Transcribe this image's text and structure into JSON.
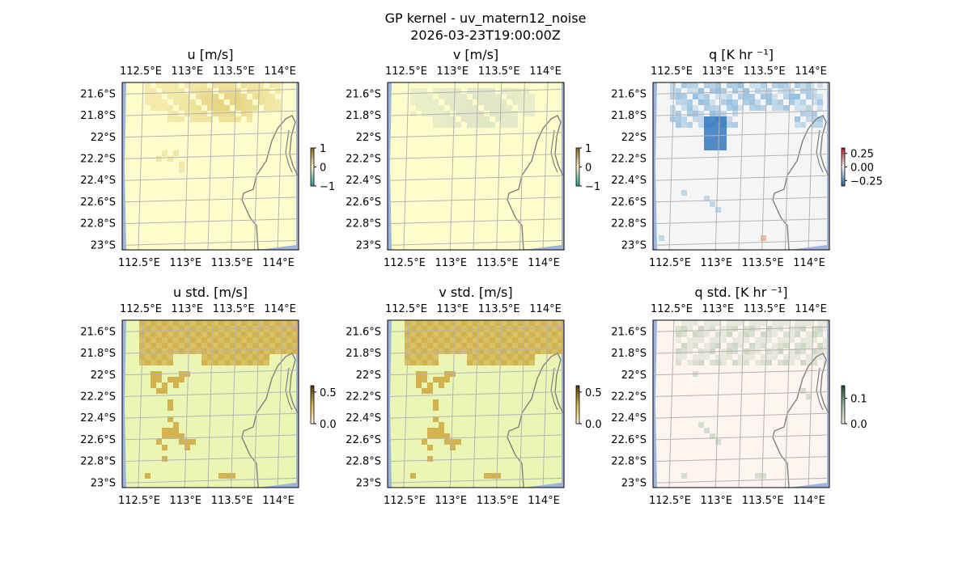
{
  "figure": {
    "title": "GP kernel - uv_matern12_noise",
    "subtitle": "2026-03-23T19:00:00Z"
  },
  "colors": {
    "ocean": "#9bb5dc",
    "coast": "#808080",
    "grid": "#b4b4b4",
    "u_v_base": "#fefdcb",
    "q_base": "#f5f5f5",
    "std_base": "#eaf7b4",
    "q_std_base": "#fef4f0"
  },
  "axes": {
    "x_ticks": [
      "112.5°E",
      "113°E",
      "113.5°E",
      "114°E"
    ],
    "y_ticks": [
      "21.6°S",
      "21.8°S",
      "22°S",
      "22.2°S",
      "22.4°S",
      "22.6°S",
      "22.8°S",
      "23°S"
    ],
    "x_values": [
      112.5,
      113.0,
      113.5,
      114.0
    ],
    "y_values": [
      -21.6,
      -21.8,
      -22.0,
      -22.2,
      -22.4,
      -22.6,
      -22.8,
      -23.0
    ],
    "xlim": [
      112.3,
      114.2
    ],
    "ylim": [
      -23.05,
      -21.5
    ],
    "grid": true
  },
  "chart_data": [
    {
      "type": "heatmap",
      "id": "u",
      "title": "u [m/s]",
      "colorbar_ticks": [
        "1",
        "0",
        "−1"
      ],
      "colorbar_values": [
        1,
        0,
        -1
      ],
      "vmin": -1,
      "vmax": 1,
      "colormap": "diverging",
      "field_note": "near zero with a positive patch in the north"
    },
    {
      "type": "heatmap",
      "id": "v",
      "title": "v [m/s]",
      "colorbar_ticks": [
        "1",
        "0",
        "−1"
      ],
      "colorbar_values": [
        1,
        0,
        -1
      ],
      "vmin": -1,
      "vmax": 1,
      "colormap": "diverging",
      "field_note": "near zero with a slight negative patch in the north"
    },
    {
      "type": "heatmap",
      "id": "q",
      "title": "q [K hr ⁻¹]",
      "colorbar_ticks": [
        "0.25",
        "0.00",
        "−0.25"
      ],
      "colorbar_values": [
        0.25,
        0.0,
        -0.25
      ],
      "vmin": -0.35,
      "vmax": 0.35,
      "colormap": "RdBu_r",
      "field_note": "negative (blue) cells in the north"
    },
    {
      "type": "heatmap",
      "id": "u_std",
      "title": "u std. [m/s]",
      "colorbar_ticks": [
        "0.5",
        "0.0"
      ],
      "colorbar_values": [
        0.5,
        0.0
      ],
      "vmin": 0.0,
      "vmax": 0.6,
      "colormap": "sequential",
      "field_note": "higher std in the north band and scattered inland patches"
    },
    {
      "type": "heatmap",
      "id": "v_std",
      "title": "v std. [m/s]",
      "colorbar_ticks": [
        "0.5",
        "0.0"
      ],
      "colorbar_values": [
        0.5,
        0.0
      ],
      "vmin": 0.0,
      "vmax": 0.6,
      "colormap": "sequential",
      "field_note": "same pattern as u std."
    },
    {
      "type": "heatmap",
      "id": "q_std",
      "title": "q std. [K hr ⁻¹]",
      "colorbar_ticks": [
        "0.1",
        "0.0"
      ],
      "colorbar_values": [
        0.1,
        0.0
      ],
      "vmin": 0.0,
      "vmax": 0.15,
      "colormap": "sequential",
      "field_note": "faint green cells in the north"
    }
  ]
}
